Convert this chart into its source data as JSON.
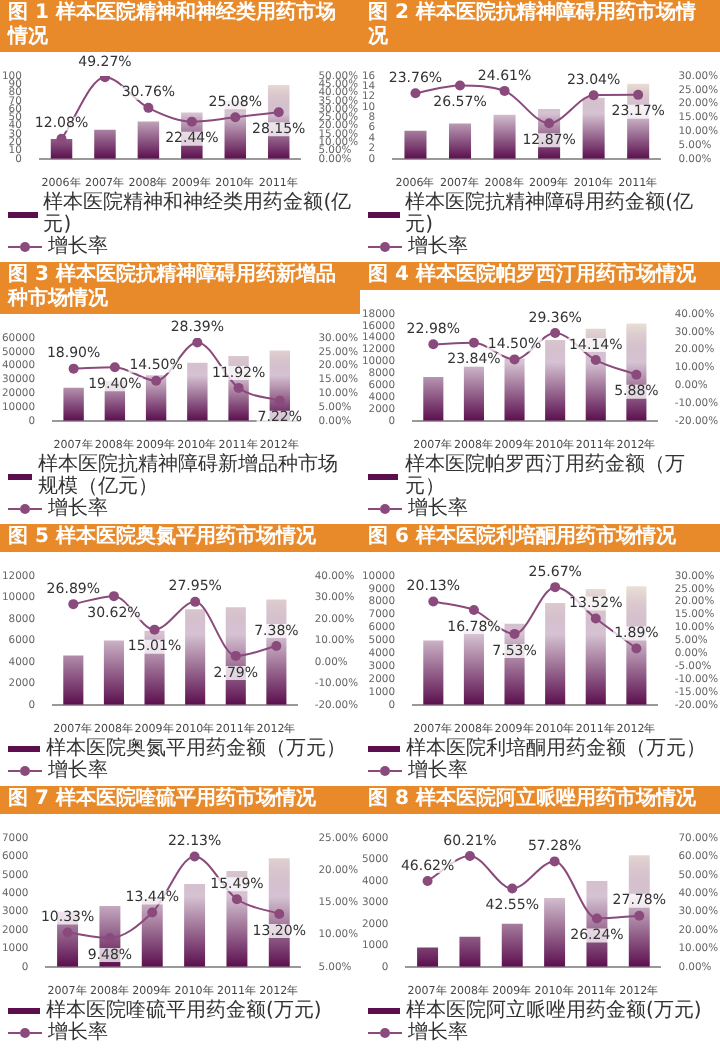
{
  "chart_data": [
    {
      "type": "bar",
      "title": "图 1  样本医院精神和神经类用药市场情况",
      "categories": [
        "2006年",
        "2007年",
        "2008年",
        "2009年",
        "2010年",
        "2011年"
      ],
      "series": [
        {
          "name": "样本医院精神和神经类用药金额(亿元)",
          "color": "#5b0f4e",
          "values": [
            24,
            35,
            45,
            56,
            70,
            89
          ]
        },
        {
          "type": "line",
          "axis": "y2",
          "name": "增长率",
          "color": "#8b4a7c",
          "values": [
            12.08,
            49.27,
            30.76,
            22.44,
            25.08,
            28.15
          ],
          "value_labels": [
            "12.08%",
            "49.27%",
            "30.76%",
            "22.44%",
            "25.08%",
            "28.15%"
          ]
        }
      ],
      "ylim": [
        0,
        100
      ],
      "yticks": [
        0,
        10,
        20,
        30,
        40,
        50,
        60,
        70,
        80,
        90,
        100
      ],
      "y2lim": [
        0,
        50
      ],
      "y2ticks": [
        {
          "value": 0,
          "label": "0.00%"
        },
        {
          "value": 5,
          "label": "5.00%"
        },
        {
          "value": 10,
          "label": "10.00%"
        },
        {
          "value": 15,
          "label": "15.00%"
        },
        {
          "value": 20,
          "label": "20.00%"
        },
        {
          "value": 25,
          "label": "25.00%"
        },
        {
          "value": 30,
          "label": "30.00%"
        },
        {
          "value": 35,
          "label": "35.00%"
        },
        {
          "value": 40,
          "label": "40.00%"
        },
        {
          "value": 45,
          "label": "45.00%"
        },
        {
          "value": 50,
          "label": "50.00%"
        }
      ],
      "legend": "bottom",
      "marker": "circle"
    },
    {
      "type": "bar",
      "title": "图 2  样本医院抗精神障碍用药市场情况",
      "categories": [
        "2006年",
        "2007年",
        "2008年",
        "2009年",
        "2010年",
        "2011年"
      ],
      "series": [
        {
          "name": "样本医院抗精神障碍用药金额(亿元)",
          "color": "#5b0f4e",
          "values": [
            5.4,
            6.8,
            8.5,
            9.6,
            11.8,
            14.5
          ]
        },
        {
          "type": "line",
          "axis": "y2",
          "name": "增长率",
          "color": "#8b4a7c",
          "values": [
            23.76,
            26.57,
            24.61,
            12.87,
            23.04,
            23.17
          ],
          "value_labels": [
            "23.76%",
            "26.57%",
            "24.61%",
            "12.87%",
            "23.04%",
            "23.17%"
          ]
        }
      ],
      "ylim": [
        0,
        16
      ],
      "yticks": [
        0,
        2,
        4,
        6,
        8,
        10,
        12,
        14,
        16
      ],
      "y2lim": [
        0,
        30
      ],
      "y2ticks": [
        {
          "value": 0,
          "label": "0.00%"
        },
        {
          "value": 5,
          "label": "5.00%"
        },
        {
          "value": 10,
          "label": "10.00%"
        },
        {
          "value": 15,
          "label": "15.00%"
        },
        {
          "value": 20,
          "label": "20.00%"
        },
        {
          "value": 25,
          "label": "25.00%"
        },
        {
          "value": 30,
          "label": "30.00%"
        }
      ],
      "legend": "bottom",
      "marker": "circle"
    },
    {
      "type": "bar",
      "title": "图 3  样本医院抗精神障碍用药新增品种市场情况",
      "categories": [
        "2007年",
        "2008年",
        "2009年",
        "2010年",
        "2011年",
        "2012年"
      ],
      "series": [
        {
          "name": "样本医院抗精神障碍新增品种市场规模（亿元）",
          "color": "#5b0f4e",
          "values": [
            24000,
            29000,
            33000,
            42000,
            47000,
            51000
          ]
        },
        {
          "type": "line",
          "axis": "y2",
          "name": "增长率",
          "color": "#8b4a7c",
          "values": [
            18.9,
            19.4,
            14.5,
            28.39,
            11.92,
            7.22
          ],
          "value_labels": [
            "18.90%",
            "19.40%",
            "14.50%",
            "28.39%",
            "11.92%",
            "7.22%"
          ]
        }
      ],
      "ylim": [
        0,
        60000
      ],
      "yticks": [
        0,
        10000,
        20000,
        30000,
        40000,
        50000,
        60000
      ],
      "y2lim": [
        0,
        30
      ],
      "y2ticks": [
        {
          "value": 0,
          "label": "0.00%"
        },
        {
          "value": 5,
          "label": "5.00%"
        },
        {
          "value": 10,
          "label": "10.00%"
        },
        {
          "value": 15,
          "label": "15.00%"
        },
        {
          "value": 20,
          "label": "20.00%"
        },
        {
          "value": 25,
          "label": "25.00%"
        },
        {
          "value": 30,
          "label": "30.00%"
        }
      ],
      "legend": "bottom",
      "marker": "circle"
    },
    {
      "type": "bar",
      "title": "图 4  样本医院帕罗西汀用药市场情况",
      "categories": [
        "2007年",
        "2008年",
        "2009年",
        "2010年",
        "2011年",
        "2012年"
      ],
      "series": [
        {
          "name": "样本医院帕罗西汀用药金额（万元）",
          "color": "#5b0f4e",
          "values": [
            7400,
            9200,
            10500,
            13600,
            15500,
            16400
          ]
        },
        {
          "type": "line",
          "axis": "y2",
          "name": "增长率",
          "color": "#8b4a7c",
          "values": [
            22.98,
            23.84,
            14.5,
            29.36,
            14.14,
            5.88
          ],
          "value_labels": [
            "22.98%",
            "23.84%",
            "14.50%",
            "29.36%",
            "14.14%",
            "5.88%"
          ]
        }
      ],
      "ylim": [
        0,
        18000
      ],
      "yticks": [
        0,
        2000,
        4000,
        6000,
        8000,
        10000,
        12000,
        14000,
        16000,
        18000
      ],
      "y2lim": [
        -20,
        40
      ],
      "y2ticks": [
        {
          "value": -20,
          "label": "-20.00%"
        },
        {
          "value": -10,
          "label": "-10.00%"
        },
        {
          "value": 0,
          "label": "0.00%"
        },
        {
          "value": 10,
          "label": "10.00%"
        },
        {
          "value": 20,
          "label": "20.00%"
        },
        {
          "value": 30,
          "label": "30.00%"
        },
        {
          "value": 40,
          "label": "40.00%"
        }
      ],
      "legend": "bottom",
      "marker": "circle"
    },
    {
      "type": "bar",
      "title": "图 5  样本医院奥氮平用药市场情况",
      "categories": [
        "2007年",
        "2008年",
        "2009年",
        "2010年",
        "2011年",
        "2012年"
      ],
      "series": [
        {
          "name": "样本医院奥氮平用药金额（万元）",
          "color": "#5b0f4e",
          "values": [
            4600,
            6000,
            6900,
            8900,
            9100,
            9800
          ]
        },
        {
          "type": "line",
          "axis": "y2",
          "name": "增长率",
          "color": "#8b4a7c",
          "values": [
            26.89,
            30.62,
            15.01,
            27.95,
            2.79,
            7.38
          ],
          "value_labels": [
            "26.89%",
            "30.62%",
            "15.01%",
            "27.95%",
            "2.79%",
            "7.38%"
          ]
        }
      ],
      "ylim": [
        0,
        12000
      ],
      "yticks": [
        0,
        2000,
        4000,
        6000,
        8000,
        10000,
        12000
      ],
      "y2lim": [
        -20,
        40
      ],
      "y2ticks": [
        {
          "value": -20,
          "label": "-20.00%"
        },
        {
          "value": -10,
          "label": "-10.00%"
        },
        {
          "value": 0,
          "label": "0.00%"
        },
        {
          "value": 10,
          "label": "10.00%"
        },
        {
          "value": 20,
          "label": "20.00%"
        },
        {
          "value": 30,
          "label": "30.00%"
        },
        {
          "value": 40,
          "label": "40.00%"
        }
      ],
      "legend": "bottom",
      "marker": "circle"
    },
    {
      "type": "bar",
      "title": "图 6  样本医院利培酮用药市场情况",
      "categories": [
        "2007年",
        "2008年",
        "2009年",
        "2010年",
        "2011年",
        "2012年"
      ],
      "series": [
        {
          "name": "样本医院利培酮用药金额（万元）",
          "color": "#5b0f4e",
          "values": [
            5000,
            5900,
            6300,
            7900,
            9000,
            9200
          ]
        },
        {
          "type": "line",
          "axis": "y2",
          "name": "增长率",
          "color": "#8b4a7c",
          "values": [
            20.13,
            16.78,
            7.53,
            25.67,
            13.52,
            1.89
          ],
          "value_labels": [
            "20.13%",
            "16.78%",
            "7.53%",
            "25.67%",
            "13.52%",
            "1.89%"
          ]
        }
      ],
      "ylim": [
        0,
        10000
      ],
      "yticks": [
        0,
        1000,
        2000,
        3000,
        4000,
        5000,
        6000,
        7000,
        8000,
        9000,
        10000
      ],
      "y2lim": [
        -20,
        30
      ],
      "y2ticks": [
        {
          "value": -20,
          "label": "-20.00%"
        },
        {
          "value": -15,
          "label": "-15.00%"
        },
        {
          "value": -10,
          "label": "-10.00%"
        },
        {
          "value": -5,
          "label": "-5.00%"
        },
        {
          "value": 0,
          "label": "0.00%"
        },
        {
          "value": 5,
          "label": "5.00%"
        },
        {
          "value": 10,
          "label": "10.00%"
        },
        {
          "value": 15,
          "label": "15.00%"
        },
        {
          "value": 20,
          "label": "20.00%"
        },
        {
          "value": 25,
          "label": "25.00%"
        },
        {
          "value": 30,
          "label": "30.00%"
        }
      ],
      "legend": "bottom",
      "marker": "circle"
    },
    {
      "type": "bar",
      "title": "图 7  样本医院喹硫平用药市场情况",
      "categories": [
        "2007年",
        "2008年",
        "2009年",
        "2010年",
        "2011年",
        "2012年"
      ],
      "series": [
        {
          "name": "样本医院喹硫平用药金额(万元)",
          "color": "#5b0f4e",
          "values": [
            3000,
            3300,
            3700,
            4500,
            5200,
            5900
          ]
        },
        {
          "type": "line",
          "axis": "y2",
          "name": "增长率",
          "color": "#8b4a7c",
          "values": [
            10.33,
            9.48,
            13.44,
            22.13,
            15.49,
            13.2
          ],
          "value_labels": [
            "10.33%",
            "9.48%",
            "13.44%",
            "22.13%",
            "15.49%",
            "13.20%"
          ]
        }
      ],
      "ylim": [
        0,
        7000
      ],
      "yticks": [
        0,
        1000,
        2000,
        3000,
        4000,
        5000,
        6000,
        7000
      ],
      "y2lim": [
        5,
        25
      ],
      "y2ticks": [
        {
          "value": 5,
          "label": "5.00%"
        },
        {
          "value": 10,
          "label": "10.00%"
        },
        {
          "value": 15,
          "label": "15.00%"
        },
        {
          "value": 20,
          "label": "20.00%"
        },
        {
          "value": 25,
          "label": "25.00%"
        }
      ],
      "legend": "bottom",
      "marker": "circle"
    },
    {
      "type": "bar",
      "title": "图 8  样本医院阿立哌唑用药市场情况",
      "categories": [
        "2007年",
        "2008年",
        "2009年",
        "2010年",
        "2011年",
        "2012年"
      ],
      "series": [
        {
          "name": "样本医院阿立哌唑用药金额(万元)",
          "color": "#5b0f4e",
          "values": [
            900,
            1400,
            2000,
            3200,
            4000,
            5200
          ]
        },
        {
          "type": "line",
          "axis": "y2",
          "name": "增长率",
          "color": "#8b4a7c",
          "values": [
            46.62,
            60.21,
            42.55,
            57.28,
            26.24,
            27.78
          ],
          "value_labels": [
            "46.62%",
            "60.21%",
            "42.55%",
            "57.28%",
            "26.24%",
            "27.78%"
          ]
        }
      ],
      "ylim": [
        0,
        6000
      ],
      "yticks": [
        0,
        1000,
        2000,
        3000,
        4000,
        5000,
        6000
      ],
      "y2lim": [
        0,
        70
      ],
      "y2ticks": [
        {
          "value": 0,
          "label": "0.00%"
        },
        {
          "value": 10,
          "label": "10.00%"
        },
        {
          "value": 20,
          "label": "20.00%"
        },
        {
          "value": 30,
          "label": "30.00%"
        },
        {
          "value": 40,
          "label": "40.00%"
        },
        {
          "value": 50,
          "label": "50.00%"
        },
        {
          "value": 60,
          "label": "60.00%"
        },
        {
          "value": 70,
          "label": "70.00%"
        }
      ],
      "legend": "bottom",
      "marker": "circle"
    }
  ]
}
